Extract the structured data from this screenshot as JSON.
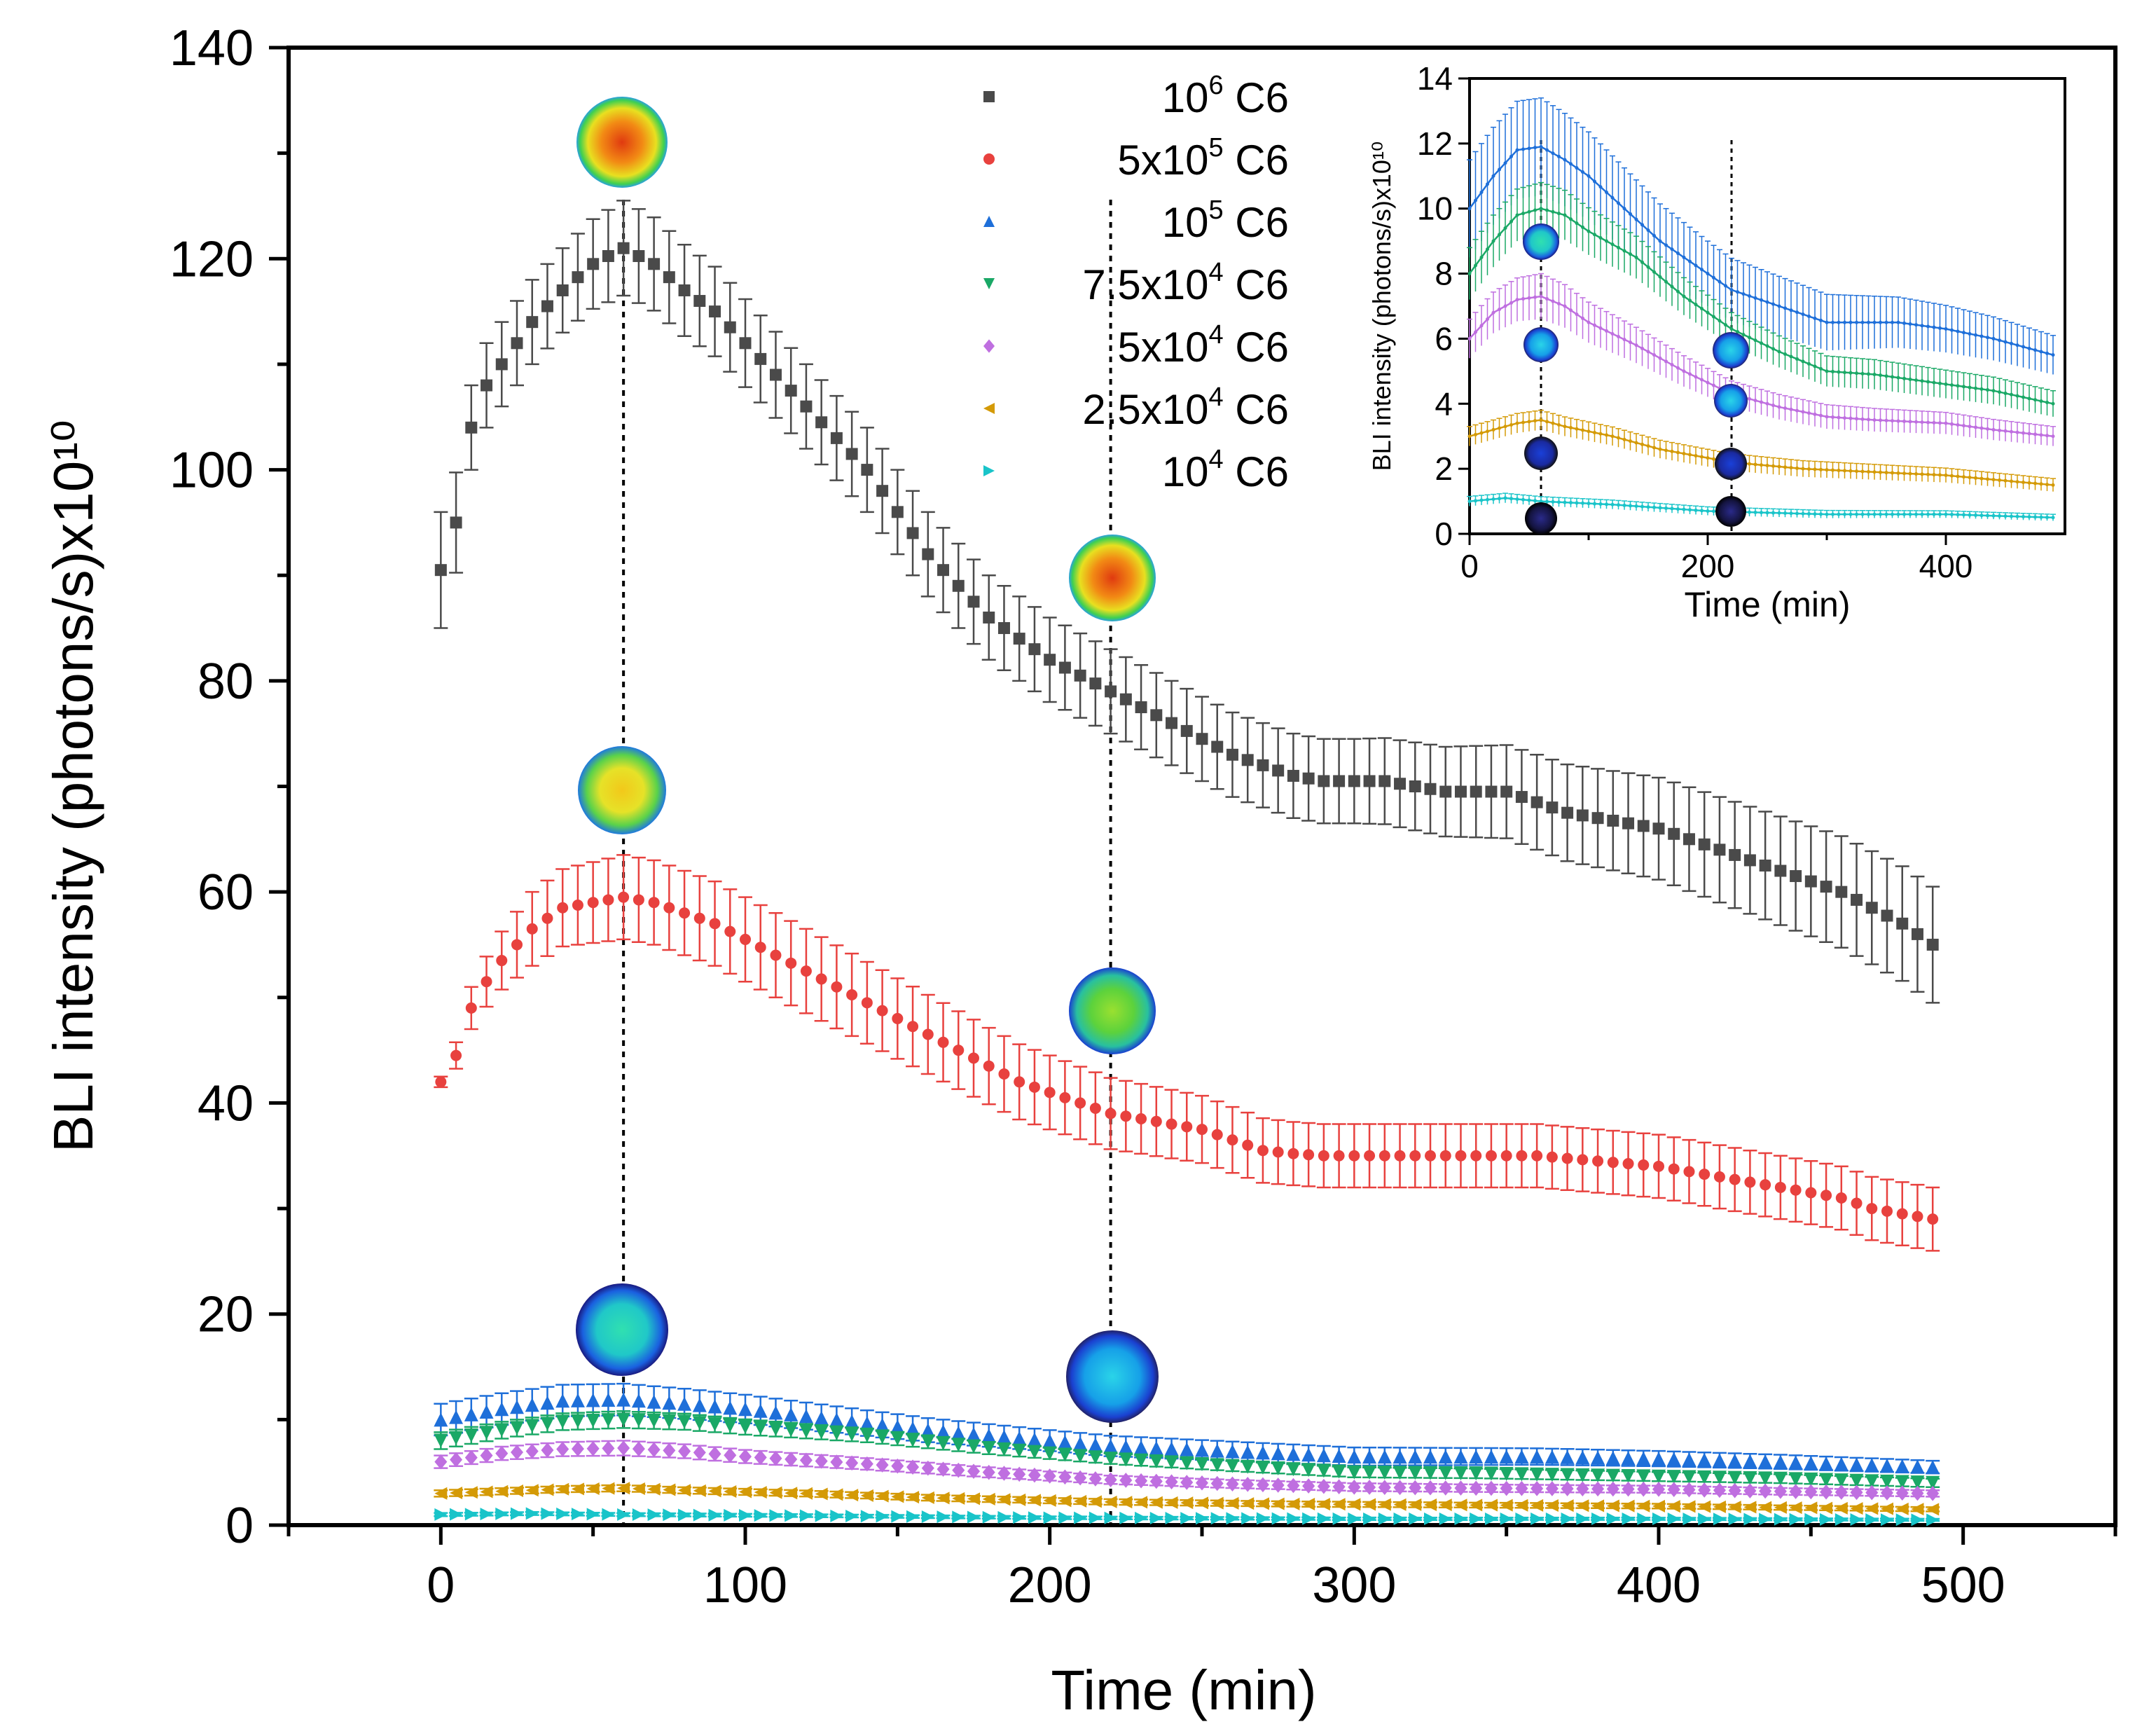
{
  "chart_data": [
    {
      "type": "scatter",
      "name": "main",
      "xlabel": "Time (min)",
      "ylabel": "BLI intensity (photons/s)x10¹⁰",
      "xlim": [
        -50,
        550
      ],
      "ylim": [
        0,
        140
      ],
      "xticks": [
        "0",
        "100",
        "200",
        "300",
        "400",
        "500"
      ],
      "yticks": [
        "0",
        "20",
        "40",
        "60",
        "80",
        "100",
        "120",
        "140"
      ],
      "marker_lines_at_x": [
        60,
        220
      ],
      "series": [
        {
          "name": "10^6 C6",
          "legend_label": {
            "base": "10",
            "exp": "6",
            "suffix": " C6"
          },
          "color": "#4a4a4a",
          "marker": "square",
          "anchors": [
            [
              0,
              90.5
            ],
            [
              5,
              95
            ],
            [
              10,
              104
            ],
            [
              15,
              108
            ],
            [
              20,
              110
            ],
            [
              30,
              114
            ],
            [
              40,
              117
            ],
            [
              50,
              119.5
            ],
            [
              60,
              121
            ],
            [
              70,
              119.5
            ],
            [
              80,
              117
            ],
            [
              90,
              115
            ],
            [
              100,
              112
            ],
            [
              110,
              109
            ],
            [
              120,
              106
            ],
            [
              130,
              103
            ],
            [
              140,
              100
            ],
            [
              150,
              96
            ],
            [
              160,
              92
            ],
            [
              170,
              89
            ],
            [
              180,
              86
            ],
            [
              190,
              84
            ],
            [
              200,
              82
            ],
            [
              210,
              80.5
            ],
            [
              220,
              79
            ],
            [
              230,
              77.5
            ],
            [
              240,
              76
            ],
            [
              250,
              74.5
            ],
            [
              260,
              73
            ],
            [
              270,
              72
            ],
            [
              280,
              71
            ],
            [
              290,
              70.5
            ],
            [
              300,
              70.5
            ],
            [
              310,
              70.5
            ],
            [
              320,
              70
            ],
            [
              330,
              69.5
            ],
            [
              340,
              69.5
            ],
            [
              350,
              69.5
            ],
            [
              360,
              68.5
            ],
            [
              370,
              67.5
            ],
            [
              380,
              67
            ],
            [
              390,
              66.5
            ],
            [
              400,
              66
            ],
            [
              410,
              65
            ],
            [
              420,
              64
            ],
            [
              430,
              63
            ],
            [
              440,
              62
            ],
            [
              450,
              61
            ],
            [
              460,
              60
            ],
            [
              470,
              58.5
            ],
            [
              480,
              57
            ],
            [
              490,
              55
            ]
          ],
          "err_anchors": [
            [
              0,
              5.5
            ],
            [
              10,
              4
            ],
            [
              40,
              4
            ],
            [
              60,
              4.5
            ],
            [
              120,
              4
            ],
            [
              200,
              4
            ],
            [
              240,
              4
            ],
            [
              300,
              4
            ],
            [
              360,
              4.5
            ],
            [
              420,
              5
            ],
            [
              490,
              5.5
            ]
          ]
        },
        {
          "name": "5x10^5 C6",
          "legend_label": {
            "base": "5x10",
            "exp": "5",
            "suffix": " C6"
          },
          "color": "#e8413e",
          "marker": "circle",
          "anchors": [
            [
              0,
              42
            ],
            [
              5,
              44.5
            ],
            [
              10,
              49
            ],
            [
              15,
              51.5
            ],
            [
              20,
              53.5
            ],
            [
              30,
              56.5
            ],
            [
              40,
              58.5
            ],
            [
              50,
              59
            ],
            [
              60,
              59.5
            ],
            [
              70,
              59
            ],
            [
              80,
              58
            ],
            [
              90,
              57
            ],
            [
              100,
              55.5
            ],
            [
              110,
              54
            ],
            [
              120,
              52.5
            ],
            [
              130,
              51
            ],
            [
              140,
              49.5
            ],
            [
              150,
              48
            ],
            [
              160,
              46.5
            ],
            [
              170,
              45
            ],
            [
              180,
              43.5
            ],
            [
              190,
              42
            ],
            [
              200,
              41
            ],
            [
              210,
              40
            ],
            [
              220,
              39
            ],
            [
              230,
              38.5
            ],
            [
              240,
              38
            ],
            [
              250,
              37.5
            ],
            [
              260,
              36.5
            ],
            [
              270,
              35.5
            ],
            [
              280,
              35.2
            ],
            [
              290,
              35
            ],
            [
              300,
              35
            ],
            [
              320,
              35
            ],
            [
              340,
              35
            ],
            [
              360,
              35
            ],
            [
              380,
              34.5
            ],
            [
              400,
              34
            ],
            [
              410,
              33.5
            ],
            [
              420,
              33
            ],
            [
              430,
              32.5
            ],
            [
              440,
              32
            ],
            [
              450,
              31.5
            ],
            [
              460,
              31
            ],
            [
              470,
              30
            ],
            [
              480,
              29.5
            ],
            [
              490,
              29
            ]
          ],
          "err_anchors": [
            [
              0,
              0.5
            ],
            [
              10,
              2
            ],
            [
              30,
              3.5
            ],
            [
              60,
              4
            ],
            [
              120,
              4
            ],
            [
              200,
              3.5
            ],
            [
              280,
              3
            ],
            [
              380,
              3
            ],
            [
              490,
              3
            ]
          ]
        },
        {
          "name": "10^5 C6",
          "legend_label": {
            "base": "10",
            "exp": "5",
            "suffix": " C6"
          },
          "color": "#1e6fd9",
          "marker": "triangle-up",
          "anchors": [
            [
              0,
              10
            ],
            [
              20,
              11
            ],
            [
              40,
              11.8
            ],
            [
              60,
              11.9
            ],
            [
              80,
              11.5
            ],
            [
              100,
              11
            ],
            [
              130,
              10
            ],
            [
              160,
              9
            ],
            [
              200,
              8
            ],
            [
              220,
              7.5
            ],
            [
              260,
              7
            ],
            [
              300,
              6.5
            ],
            [
              340,
              6.5
            ],
            [
              360,
              6.5
            ],
            [
              400,
              6.3
            ],
            [
              440,
              6
            ],
            [
              490,
              5.5
            ]
          ],
          "err_anchors": [
            [
              0,
              1.5
            ],
            [
              60,
              1.5
            ],
            [
              200,
              1
            ],
            [
              490,
              0.6
            ]
          ]
        },
        {
          "name": "7.5x10^4 C6",
          "legend_label": {
            "base": "7.5x10",
            "exp": "4",
            "suffix": " C6"
          },
          "color": "#1aa866",
          "marker": "triangle-down",
          "anchors": [
            [
              0,
              8
            ],
            [
              20,
              9
            ],
            [
              40,
              9.8
            ],
            [
              60,
              10
            ],
            [
              80,
              9.8
            ],
            [
              100,
              9.3
            ],
            [
              140,
              8.5
            ],
            [
              180,
              7.3
            ],
            [
              220,
              6.3
            ],
            [
              260,
              5.6
            ],
            [
              300,
              5
            ],
            [
              340,
              4.9
            ],
            [
              400,
              4.6
            ],
            [
              440,
              4.4
            ],
            [
              490,
              4
            ]
          ],
          "err_anchors": [
            [
              0,
              0.8
            ],
            [
              60,
              0.8
            ],
            [
              220,
              0.5
            ],
            [
              490,
              0.4
            ]
          ]
        },
        {
          "name": "5x10^4 C6",
          "legend_label": {
            "base": "5x10",
            "exp": "4",
            "suffix": " C6"
          },
          "color": "#bf6fe0",
          "marker": "diamond",
          "anchors": [
            [
              0,
              6
            ],
            [
              20,
              6.8
            ],
            [
              40,
              7.2
            ],
            [
              60,
              7.3
            ],
            [
              80,
              7
            ],
            [
              100,
              6.5
            ],
            [
              140,
              5.8
            ],
            [
              180,
              5
            ],
            [
              220,
              4.3
            ],
            [
              260,
              3.9
            ],
            [
              300,
              3.6
            ],
            [
              340,
              3.5
            ],
            [
              400,
              3.4
            ],
            [
              440,
              3.2
            ],
            [
              490,
              3
            ]
          ],
          "err_anchors": [
            [
              0,
              0.6
            ],
            [
              60,
              0.7
            ],
            [
              220,
              0.4
            ],
            [
              490,
              0.3
            ]
          ]
        },
        {
          "name": "2.5x10^4 C6",
          "legend_label": {
            "base": "2.5x10",
            "exp": "4",
            "suffix": " C6"
          },
          "color": "#d49a06",
          "marker": "triangle-left",
          "anchors": [
            [
              0,
              3
            ],
            [
              20,
              3.2
            ],
            [
              40,
              3.4
            ],
            [
              60,
              3.5
            ],
            [
              80,
              3.3
            ],
            [
              120,
              3
            ],
            [
              160,
              2.6
            ],
            [
              220,
              2.2
            ],
            [
              280,
              2
            ],
            [
              340,
              1.9
            ],
            [
              400,
              1.8
            ],
            [
              490,
              1.5
            ]
          ],
          "err_anchors": [
            [
              0,
              0.3
            ],
            [
              60,
              0.3
            ],
            [
              490,
              0.2
            ]
          ]
        },
        {
          "name": "10^4 C6",
          "legend_label": {
            "base": "10",
            "exp": "4",
            "suffix": " C6"
          },
          "color": "#19c4c9",
          "marker": "triangle-right",
          "anchors": [
            [
              0,
              1
            ],
            [
              30,
              1.1
            ],
            [
              60,
              1
            ],
            [
              120,
              0.9
            ],
            [
              200,
              0.7
            ],
            [
              300,
              0.6
            ],
            [
              400,
              0.6
            ],
            [
              490,
              0.5
            ]
          ],
          "err_anchors": [
            [
              0,
              0.15
            ],
            [
              490,
              0.1
            ]
          ]
        }
      ]
    },
    {
      "type": "line",
      "name": "inset",
      "xlabel": "Time (min)",
      "ylabel": "BLI intensity (photons/s)x10¹⁰",
      "xlim": [
        0,
        500
      ],
      "ylim": [
        0,
        14
      ],
      "xticks": [
        "0",
        "200",
        "400"
      ],
      "yticks": [
        "0",
        "2",
        "4",
        "6",
        "8",
        "10",
        "12",
        "14"
      ],
      "marker_lines_at_x": [
        60,
        220
      ],
      "series_ref": "main series 3-7 (10^5, 7.5x10^4, 5x10^4, 2.5x10^4, 10^4 C6)"
    }
  ]
}
